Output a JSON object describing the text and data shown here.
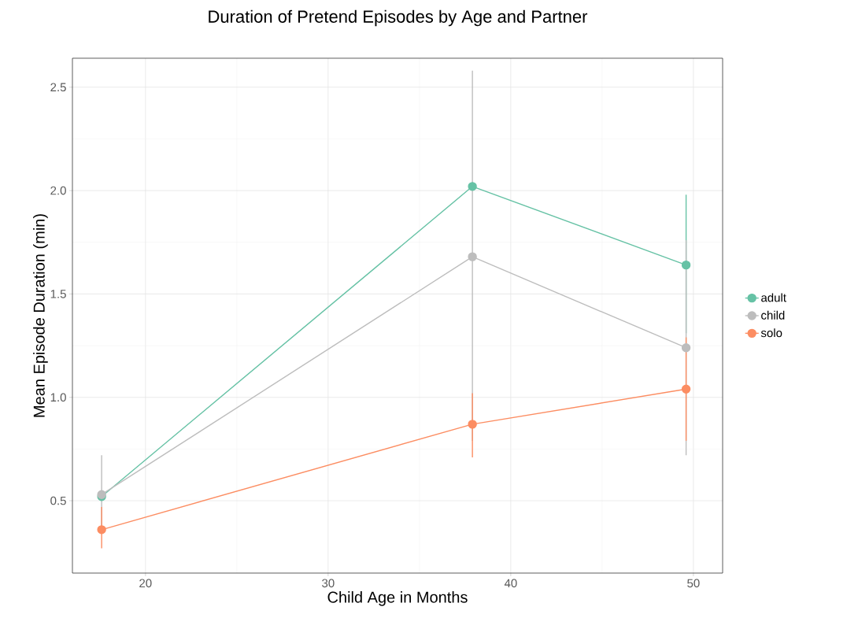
{
  "chart_data": {
    "type": "line",
    "title": "Duration of Pretend Episodes by Age and Partner",
    "xlabel": "Child Age in Months",
    "ylabel": "Mean Episode Duration (min)",
    "xlim": [
      16,
      51.6
    ],
    "ylim": [
      0.15,
      2.64
    ],
    "xticks": [
      20,
      30,
      40,
      50
    ],
    "yticks": [
      0.5,
      {
        "value": 1.0,
        "label": "1.0"
      },
      1.5,
      {
        "value": 2.0,
        "label": "2.0"
      },
      2.5
    ],
    "grid": true,
    "legend": "right",
    "marker": "circle",
    "line_style": "solid",
    "x": [
      17.6,
      37.9,
      49.6
    ],
    "series": [
      {
        "name": "adult",
        "color": "#66c2a5",
        "values": [
          0.52,
          2.02,
          1.64
        ],
        "errors": [
          null,
          null,
          [
            1.31,
            1.98
          ]
        ]
      },
      {
        "name": "child",
        "color": "#bdbdbd",
        "values": [
          0.53,
          1.68,
          1.24
        ],
        "errors": [
          [
            0.34,
            0.72
          ],
          [
            0.79,
            2.58
          ],
          [
            0.72,
            1.76
          ]
        ]
      },
      {
        "name": "solo",
        "color": "#fc8d62",
        "values": [
          0.36,
          0.87,
          1.04
        ],
        "errors": [
          [
            0.27,
            0.47
          ],
          [
            0.71,
            1.02
          ],
          [
            0.79,
            1.29
          ]
        ]
      }
    ]
  }
}
